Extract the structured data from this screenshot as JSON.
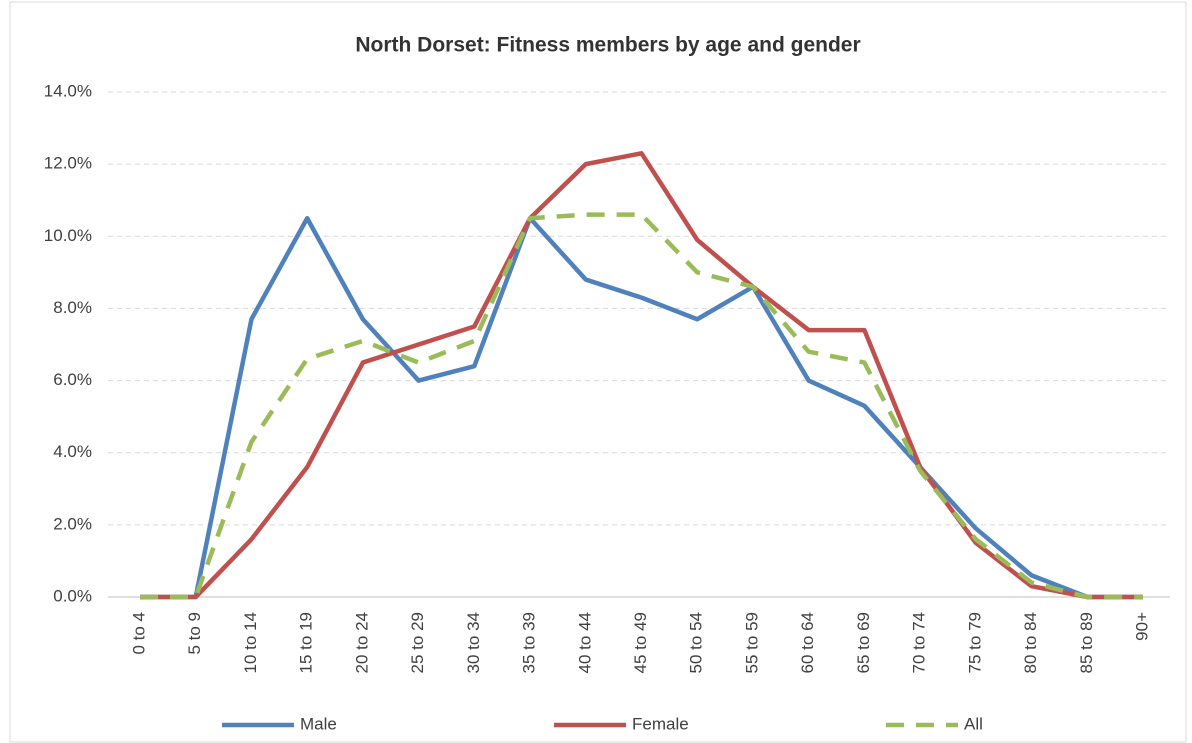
{
  "chart_data": {
    "type": "line",
    "title": "North Dorset: Fitness members by age and gender",
    "categories": [
      "0 to 4",
      "5 to 9",
      "10 to 14",
      "15 to 19",
      "20 to 24",
      "25 to 29",
      "30 to 34",
      "35 to 39",
      "40 to 44",
      "45 to 49",
      "50 to 54",
      "55 to 59",
      "60 to 64",
      "65 to 69",
      "70 to 74",
      "75 to 79",
      "80 to 84",
      "85 to 89",
      "90+"
    ],
    "series": [
      {
        "name": "Male",
        "color": "#4f81bd",
        "dash": false,
        "values": [
          0,
          0,
          7.7,
          10.5,
          7.7,
          6.0,
          6.4,
          10.5,
          8.8,
          8.3,
          7.7,
          8.6,
          6.0,
          5.3,
          3.6,
          1.9,
          0.6,
          0,
          0
        ]
      },
      {
        "name": "Female",
        "color": "#c0504d",
        "dash": false,
        "values": [
          0,
          0,
          1.6,
          3.6,
          6.5,
          7.0,
          7.5,
          10.5,
          12.0,
          12.3,
          9.9,
          8.6,
          7.4,
          7.4,
          3.6,
          1.5,
          0.3,
          0,
          0
        ]
      },
      {
        "name": "All",
        "color": "#9bbb59",
        "dash": true,
        "values": [
          0,
          0,
          4.3,
          6.6,
          7.1,
          6.5,
          7.1,
          10.5,
          10.6,
          10.6,
          9.0,
          8.6,
          6.8,
          6.5,
          3.5,
          1.6,
          0.4,
          0,
          0
        ]
      }
    ],
    "ylim": [
      0,
      14
    ],
    "yticks": [
      {
        "value": 0,
        "label": "0.0%"
      },
      {
        "value": 2,
        "label": "2.0%"
      },
      {
        "value": 4,
        "label": "4.0%"
      },
      {
        "value": 6,
        "label": "6.0%"
      },
      {
        "value": 8,
        "label": "8.0%"
      },
      {
        "value": 10,
        "label": "10.0%"
      },
      {
        "value": 12,
        "label": "12.0%"
      },
      {
        "value": 14,
        "label": "14.0%"
      }
    ],
    "grid": true,
    "legend": "bottom"
  }
}
